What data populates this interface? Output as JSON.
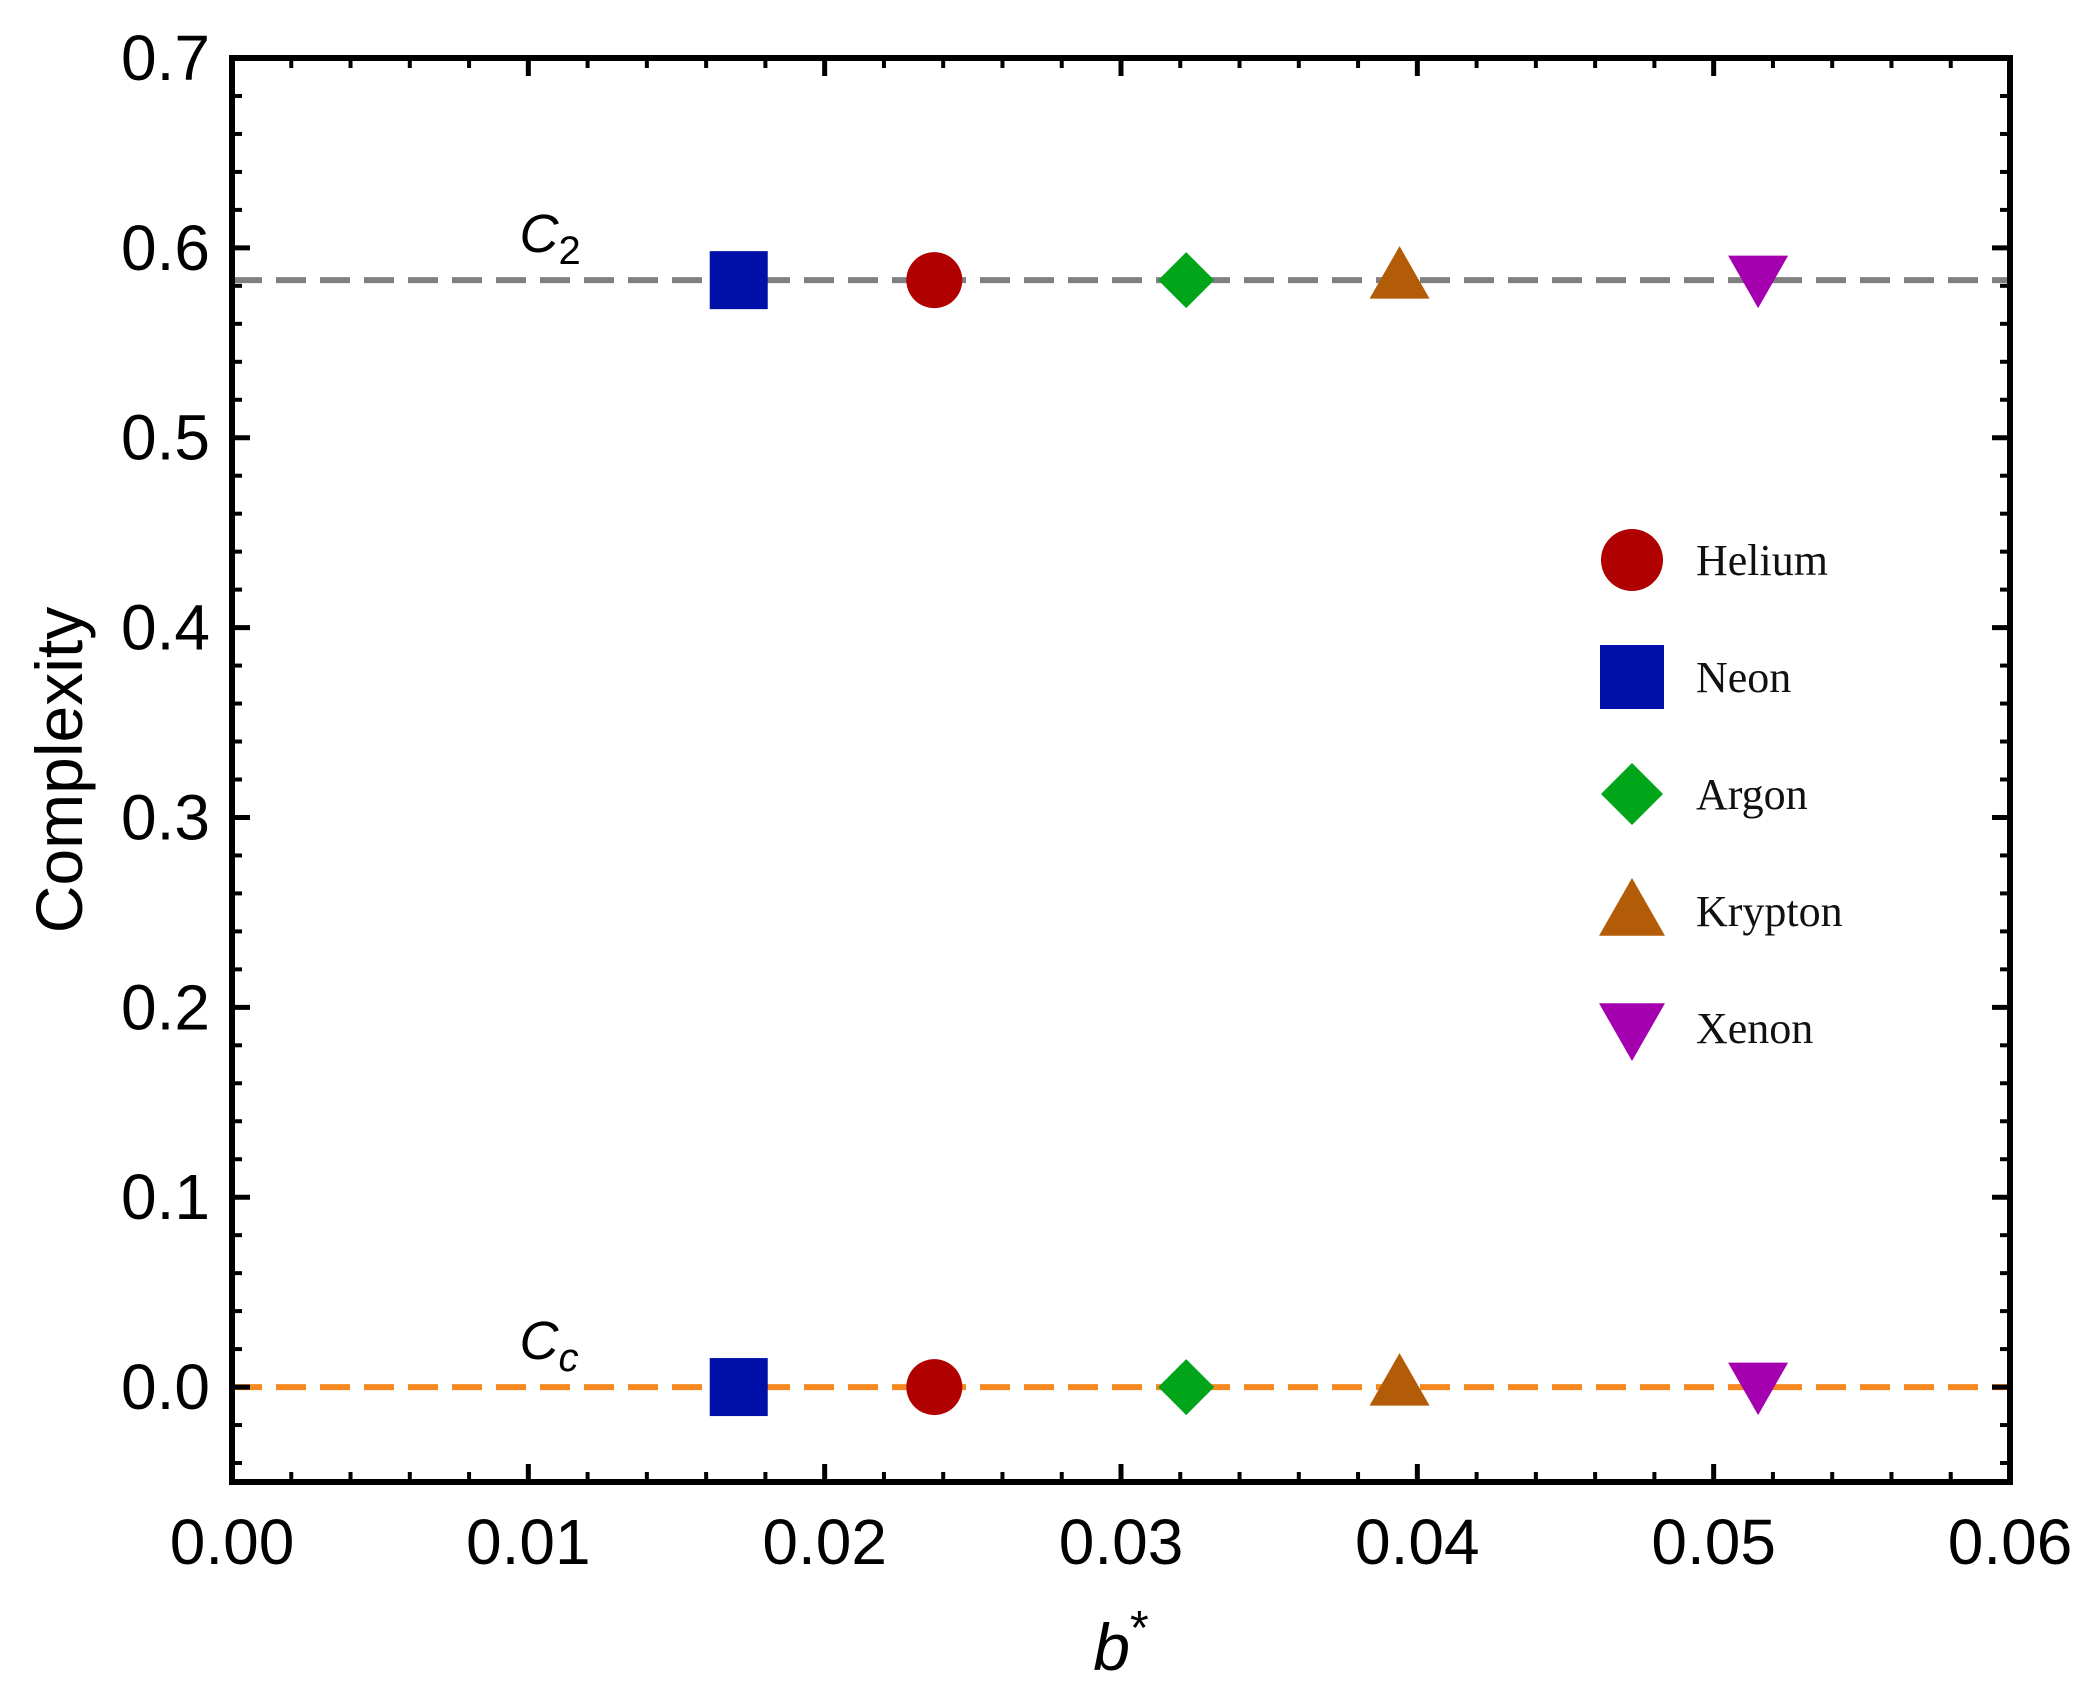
{
  "chart_data": {
    "type": "scatter",
    "title": "",
    "xlabel": "b*",
    "xlabel_base": "b",
    "xlabel_sup": "*",
    "ylabel": "Complexity",
    "xlim": [
      0.0,
      0.06
    ],
    "ylim": [
      -0.05,
      0.7
    ],
    "x_ticks": [
      "0.00",
      "0.01",
      "0.02",
      "0.03",
      "0.04",
      "0.05",
      "0.06"
    ],
    "y_ticks": [
      "0.0",
      "0.1",
      "0.2",
      "0.3",
      "0.4",
      "0.5",
      "0.6",
      "0.7"
    ],
    "reference_lines": [
      {
        "name": "C2",
        "label_base": "C",
        "label_sub": "2",
        "sub_italic": false,
        "y": 0.583,
        "color": "#808080",
        "label_x": 0.0097
      },
      {
        "name": "Cc",
        "label_base": "C",
        "label_sub": "c",
        "sub_italic": true,
        "y": 0.0,
        "color": "#f5891f",
        "label_x": 0.0097
      }
    ],
    "series": [
      {
        "name": "Helium",
        "marker": "circle",
        "color": "#b00000",
        "x": [
          0.0237,
          0.0237
        ],
        "y": [
          0.583,
          0.0
        ]
      },
      {
        "name": "Neon",
        "marker": "square",
        "color": "#0010a8",
        "x": [
          0.0171,
          0.0171
        ],
        "y": [
          0.583,
          0.0
        ]
      },
      {
        "name": "Argon",
        "marker": "diamond",
        "color": "#00a51a",
        "x": [
          0.0322,
          0.0322
        ],
        "y": [
          0.583,
          0.0
        ]
      },
      {
        "name": "Krypton",
        "marker": "triangle-up",
        "color": "#b35c07",
        "x": [
          0.0394,
          0.0394
        ],
        "y": [
          0.583,
          0.0
        ]
      },
      {
        "name": "Xenon",
        "marker": "triangle-down",
        "color": "#a400b0",
        "x": [
          0.0515,
          0.0515
        ],
        "y": [
          0.583,
          0.0
        ]
      }
    ],
    "legend": {
      "position": "right",
      "entries": [
        "Helium",
        "Neon",
        "Argon",
        "Krypton",
        "Xenon"
      ]
    }
  }
}
